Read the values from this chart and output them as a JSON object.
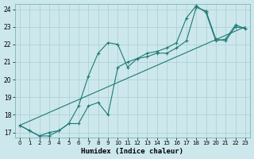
{
  "xlabel": "Humidex (Indice chaleur)",
  "background_color": "#cce8ed",
  "grid_color": "#aacdd4",
  "line_color": "#1e7a72",
  "xlim": [
    -0.5,
    23.5
  ],
  "ylim": [
    16.7,
    24.3
  ],
  "yticks": [
    17,
    18,
    19,
    20,
    21,
    22,
    23,
    24
  ],
  "xticks": [
    0,
    1,
    2,
    3,
    4,
    5,
    6,
    7,
    8,
    9,
    10,
    11,
    12,
    13,
    14,
    15,
    16,
    17,
    18,
    19,
    20,
    21,
    22,
    23
  ],
  "series1_x": [
    0,
    1,
    2,
    3,
    4,
    5,
    6,
    7,
    8,
    9,
    10,
    11,
    12,
    13,
    14,
    15,
    16,
    17,
    18,
    19,
    20,
    21,
    22,
    23
  ],
  "series1_y": [
    17.4,
    17.1,
    16.8,
    17.0,
    17.1,
    17.5,
    18.5,
    20.2,
    21.5,
    22.1,
    22.0,
    20.7,
    21.2,
    21.3,
    21.5,
    21.5,
    21.8,
    22.2,
    24.1,
    23.9,
    22.3,
    22.2,
    23.0,
    22.9
  ],
  "series2_x": [
    0,
    1,
    2,
    3,
    4,
    5,
    6,
    7,
    8,
    9,
    10,
    11,
    12,
    13,
    14,
    15,
    16,
    17,
    18,
    19,
    20,
    21,
    22,
    23
  ],
  "series2_y": [
    17.4,
    17.1,
    16.8,
    16.8,
    17.1,
    17.5,
    17.5,
    18.5,
    18.7,
    18.0,
    20.7,
    21.0,
    21.2,
    21.5,
    21.6,
    21.8,
    22.1,
    23.5,
    24.2,
    23.8,
    22.2,
    22.3,
    23.1,
    22.9
  ],
  "trend_x": [
    0,
    23
  ],
  "trend_y": [
    17.4,
    23.0
  ]
}
